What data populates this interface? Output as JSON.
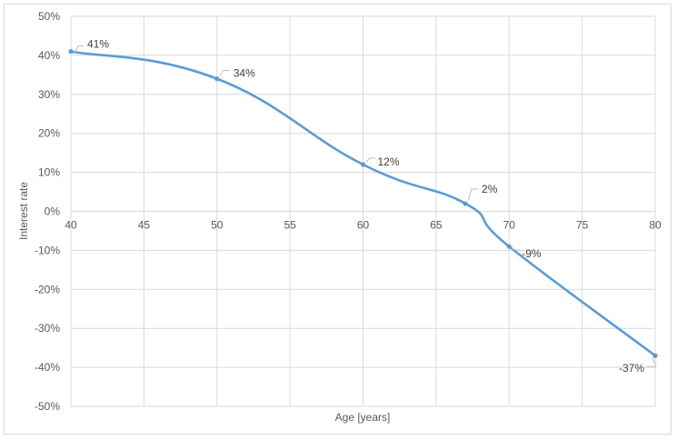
{
  "chart_data": {
    "type": "line",
    "title": "",
    "xlabel": "Age [years]",
    "ylabel": "Interest rate",
    "xlim": [
      40,
      80
    ],
    "ylim": [
      -0.5,
      0.5
    ],
    "x_ticks": [
      40,
      45,
      50,
      55,
      60,
      65,
      70,
      75,
      80
    ],
    "x_tick_labels": [
      "40",
      "45",
      "50",
      "55",
      "60",
      "65",
      "70",
      "75",
      "80"
    ],
    "y_ticks": [
      0.5,
      0.4,
      0.3,
      0.2,
      0.1,
      0,
      -0.1,
      -0.2,
      -0.3,
      -0.4,
      -0.5
    ],
    "y_tick_labels": [
      "50%",
      "40%",
      "30%",
      "20%",
      "10%",
      "0%",
      "-10%",
      "-20%",
      "-30%",
      "-40%",
      "-50%"
    ],
    "grid": true,
    "legend": "none",
    "series": [
      {
        "x": [
          40,
          50,
          60,
          67,
          70,
          80
        ],
        "y": [
          0.41,
          0.34,
          0.12,
          0.02,
          -0.09,
          -0.37
        ],
        "labels": [
          "41%",
          "34%",
          "12%",
          "2%",
          "-9%",
          "-37%"
        ],
        "color": "#5b9bd5"
      }
    ]
  }
}
